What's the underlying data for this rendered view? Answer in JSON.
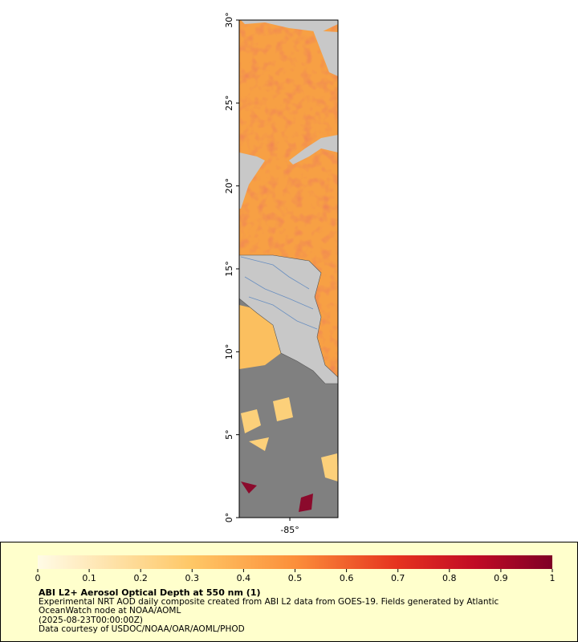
{
  "map": {
    "lat_lim": [
      0,
      30
    ],
    "lat_ticks": [
      {
        "value": 0,
        "label": "0°"
      },
      {
        "value": 5,
        "label": "5°"
      },
      {
        "value": 10,
        "label": "10°"
      },
      {
        "value": 15,
        "label": "15°"
      },
      {
        "value": 20,
        "label": "20°"
      },
      {
        "value": 25,
        "label": "25°"
      },
      {
        "value": 30,
        "label": "30°"
      }
    ],
    "lon_lim": [
      -88.05,
      -82.1
    ],
    "lon_ticks": [
      {
        "value": -85,
        "label": "-85°"
      }
    ]
  },
  "colorbar": {
    "lim": [
      0,
      1
    ],
    "ticks": [
      0,
      0.1,
      0.2,
      0.3,
      0.4,
      0.5,
      0.6,
      0.7,
      0.8,
      0.9,
      1
    ]
  },
  "caption": {
    "title": "ABI L2+ Aerosol Optical Depth at 550 nm (1)",
    "lines": [
      "Experimental NRT AOD daily composite created from ABI L2 data from GOES-19. Fields generated by Atlantic",
      "OceanWatch node at NOAA/AOML",
      "(2025-08-23T00:00:00Z)",
      "Data courtesy of USDOC/NOAA/OAR/AOML/PHOD"
    ]
  }
}
